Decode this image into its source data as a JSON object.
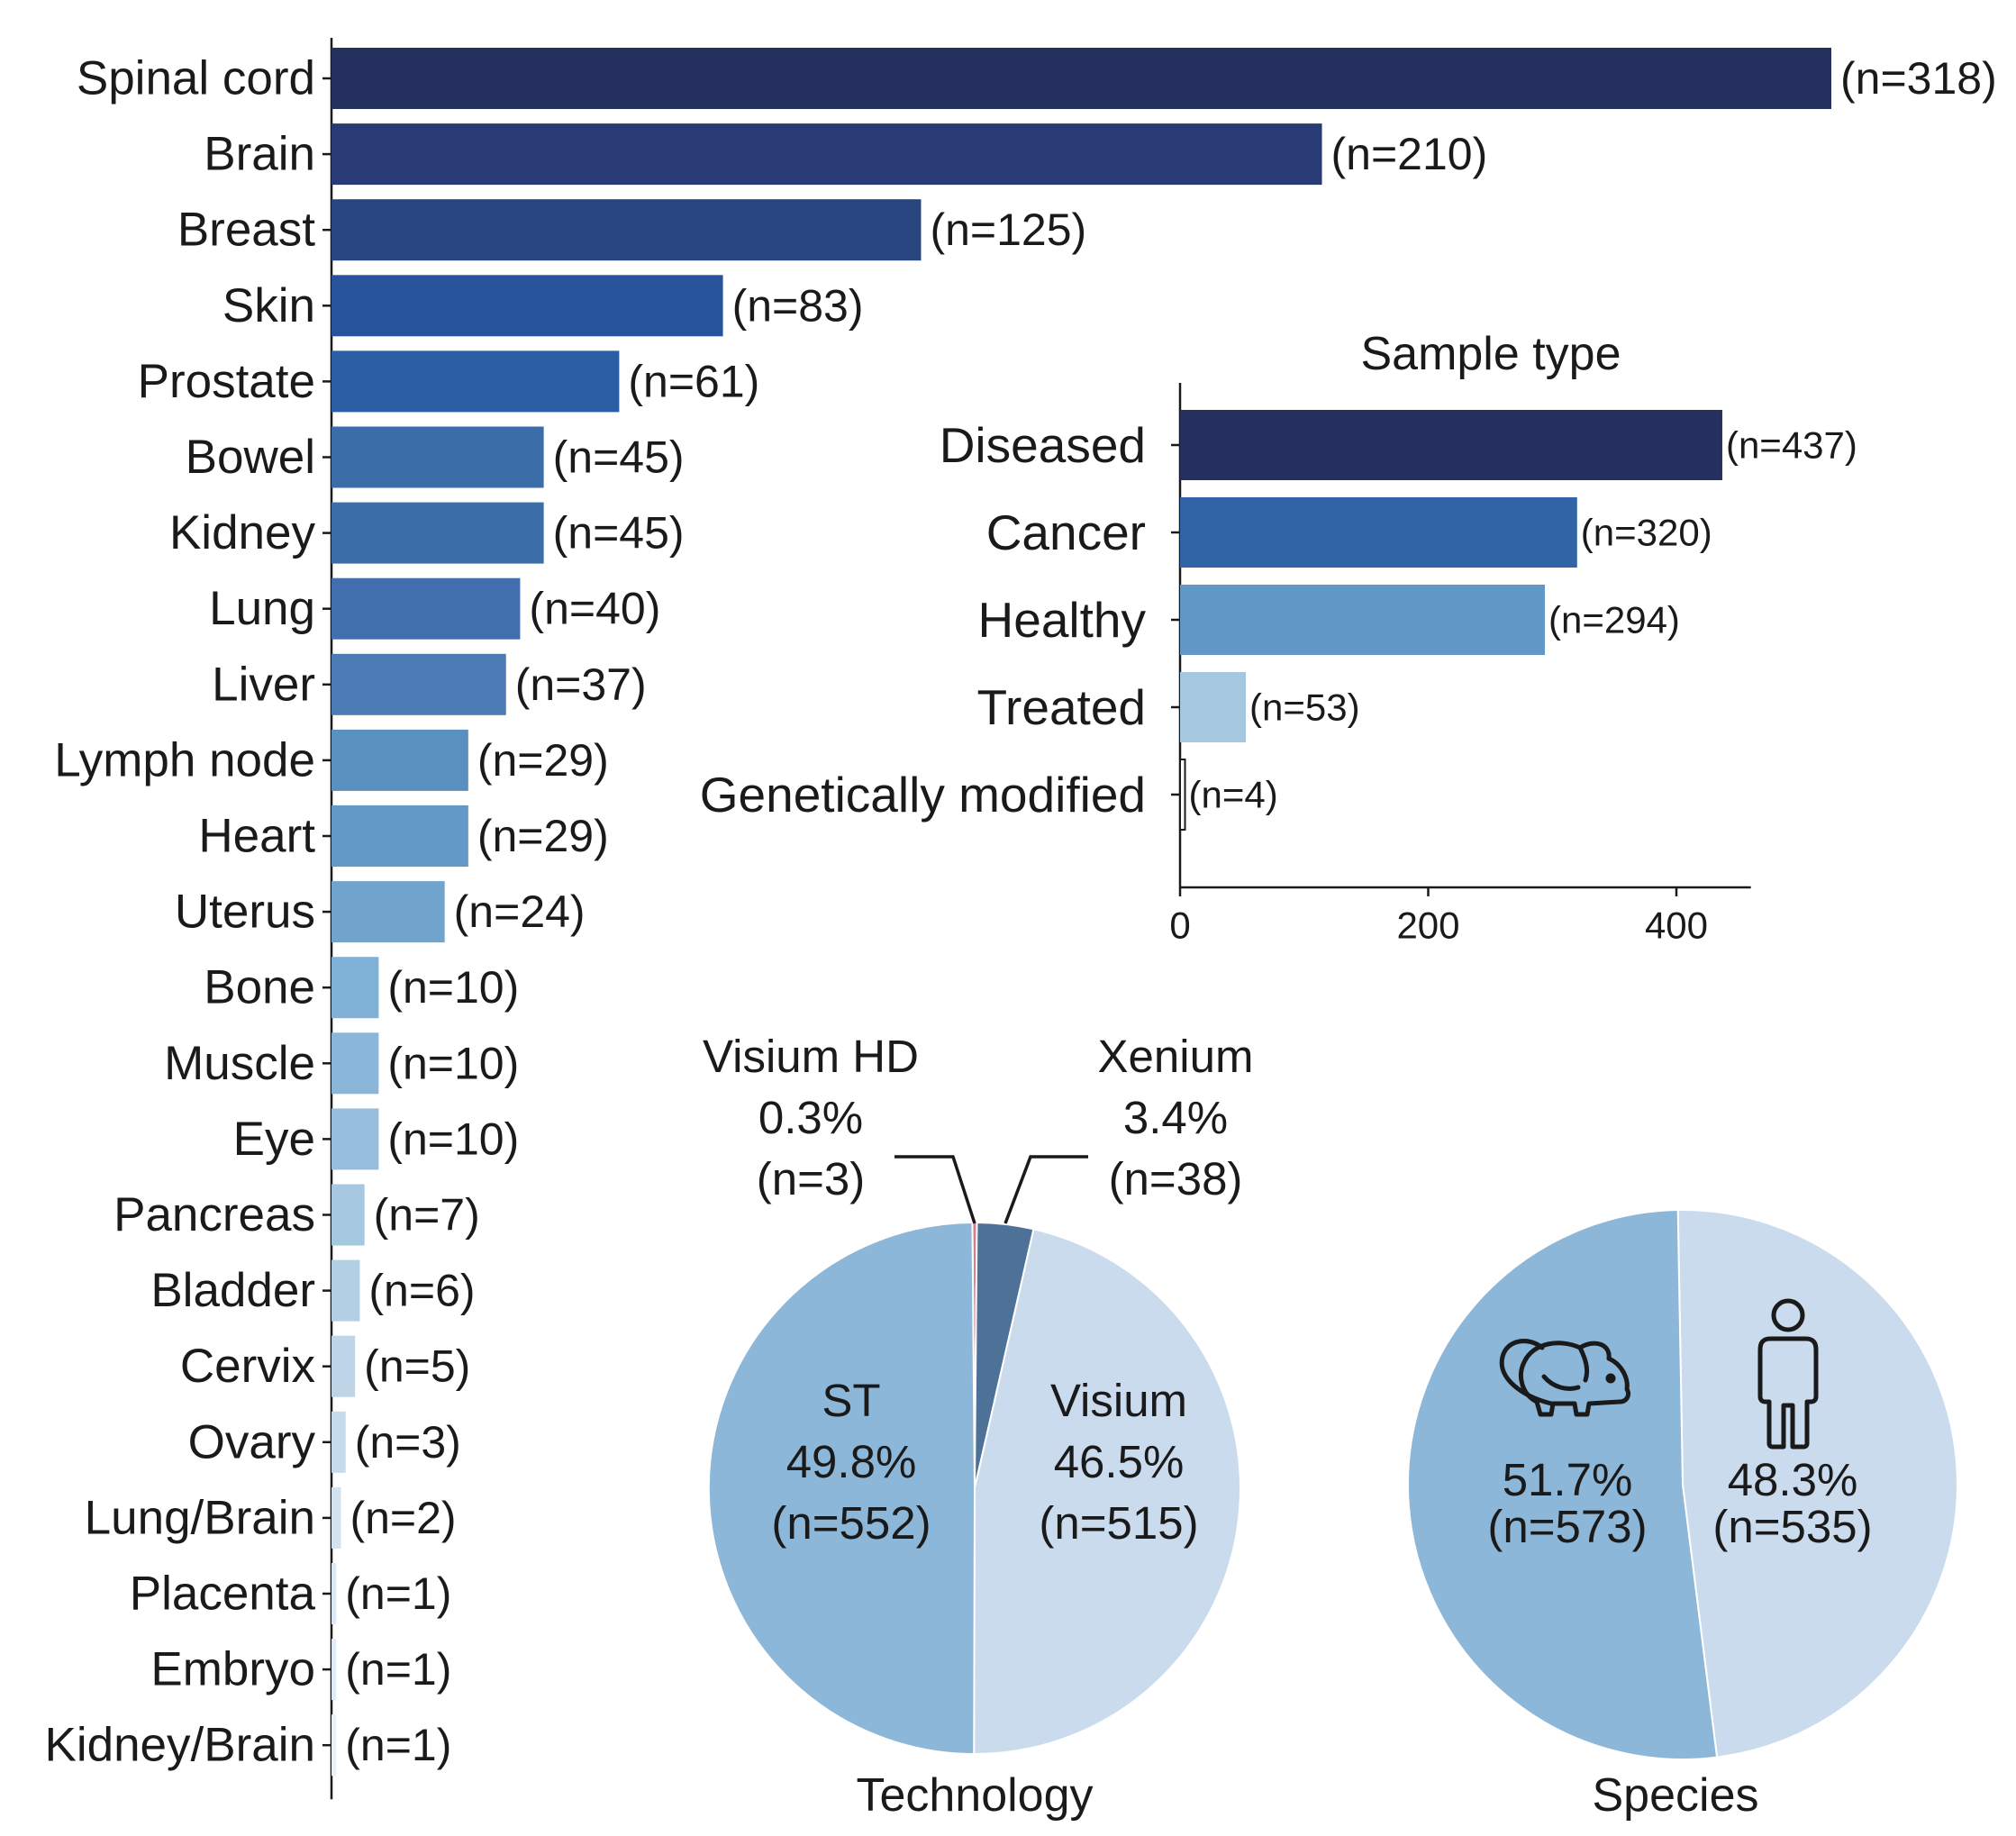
{
  "chart_data": [
    {
      "type": "bar",
      "orientation": "horizontal",
      "title": "",
      "categories": [
        "Spinal cord",
        "Brain",
        "Breast",
        "Skin",
        "Prostate",
        "Bowel",
        "Kidney",
        "Lung",
        "Liver",
        "Lymph node",
        "Heart",
        "Uterus",
        "Bone",
        "Muscle",
        "Eye",
        "Pancreas",
        "Bladder",
        "Cervix",
        "Ovary",
        "Lung/Brain",
        "Placenta",
        "Embryo",
        "Kidney/Brain"
      ],
      "values": [
        318,
        210,
        125,
        83,
        61,
        45,
        45,
        40,
        37,
        29,
        29,
        24,
        10,
        10,
        10,
        7,
        6,
        5,
        3,
        2,
        1,
        1,
        1
      ],
      "labels": [
        "(n=318)",
        "(n=210)",
        "(n=125)",
        "(n=83)",
        "(n=61)",
        "(n=45)",
        "(n=45)",
        "(n=40)",
        "(n=37)",
        "(n=29)",
        "(n=29)",
        "(n=24)",
        "(n=10)",
        "(n=10)",
        "(n=10)",
        "(n=7)",
        "(n=6)",
        "(n=5)",
        "(n=3)",
        "(n=2)",
        "(n=1)",
        "(n=1)",
        "(n=1)"
      ],
      "colors": [
        "#25305e",
        "#283b74",
        "#27467f",
        "#27539a",
        "#2b5ea3",
        "#3b6ea9",
        "#3b6ea9",
        "#416fae",
        "#4a7bb5",
        "#5990c0",
        "#6299c7",
        "#70a4cd",
        "#7fb0d5",
        "#8ab6d9",
        "#96bedc",
        "#a5c7df",
        "#b3cfe4",
        "#bdd5e7",
        "#c6dbec",
        "#d2e2ef",
        "#dce8f3",
        "#e2ecf6",
        "#e8f0f8"
      ],
      "xlim": [
        0,
        318
      ]
    },
    {
      "type": "bar",
      "orientation": "horizontal",
      "title": "Sample type",
      "categories": [
        "Diseased",
        "Cancer",
        "Healthy",
        "Treated",
        "Genetically modified"
      ],
      "values": [
        437,
        320,
        294,
        53,
        4
      ],
      "labels": [
        "(n=437)",
        "(n=320)",
        "(n=294)",
        "(n=53)",
        "(n=4)"
      ],
      "colors": [
        "#25305e",
        "#3064a6",
        "#6298c7",
        "#a5c7df",
        "#ffffff"
      ],
      "xticks": [
        "0",
        "200",
        "400"
      ],
      "xlim": [
        0,
        460
      ]
    },
    {
      "type": "pie",
      "title": "Technology",
      "slices": [
        {
          "name": "Visium HD",
          "percent_label": "0.3%",
          "count_label": "(n=3)",
          "value": 3,
          "color": "#e07a86"
        },
        {
          "name": "Xenium",
          "percent_label": "3.4%",
          "count_label": "(n=38)",
          "value": 38,
          "color": "#4e7297"
        },
        {
          "name": "Visium",
          "percent_label": "46.5%",
          "count_label": "(n=515)",
          "value": 515,
          "color": "#cbdbee"
        },
        {
          "name": "ST",
          "percent_label": "49.8%",
          "count_label": "(n=552)",
          "value": 552,
          "color": "#8db7d8"
        }
      ]
    },
    {
      "type": "pie",
      "title": "Species",
      "slices": [
        {
          "name": "human",
          "icon": "human-icon",
          "percent_label": "48.3%",
          "count_label": "(n=535)",
          "value": 535,
          "color": "#cbdbee"
        },
        {
          "name": "mouse",
          "icon": "mouse-icon",
          "percent_label": "51.7%",
          "count_label": "(n=573)",
          "value": 573,
          "color": "#8db7d8"
        }
      ]
    }
  ]
}
